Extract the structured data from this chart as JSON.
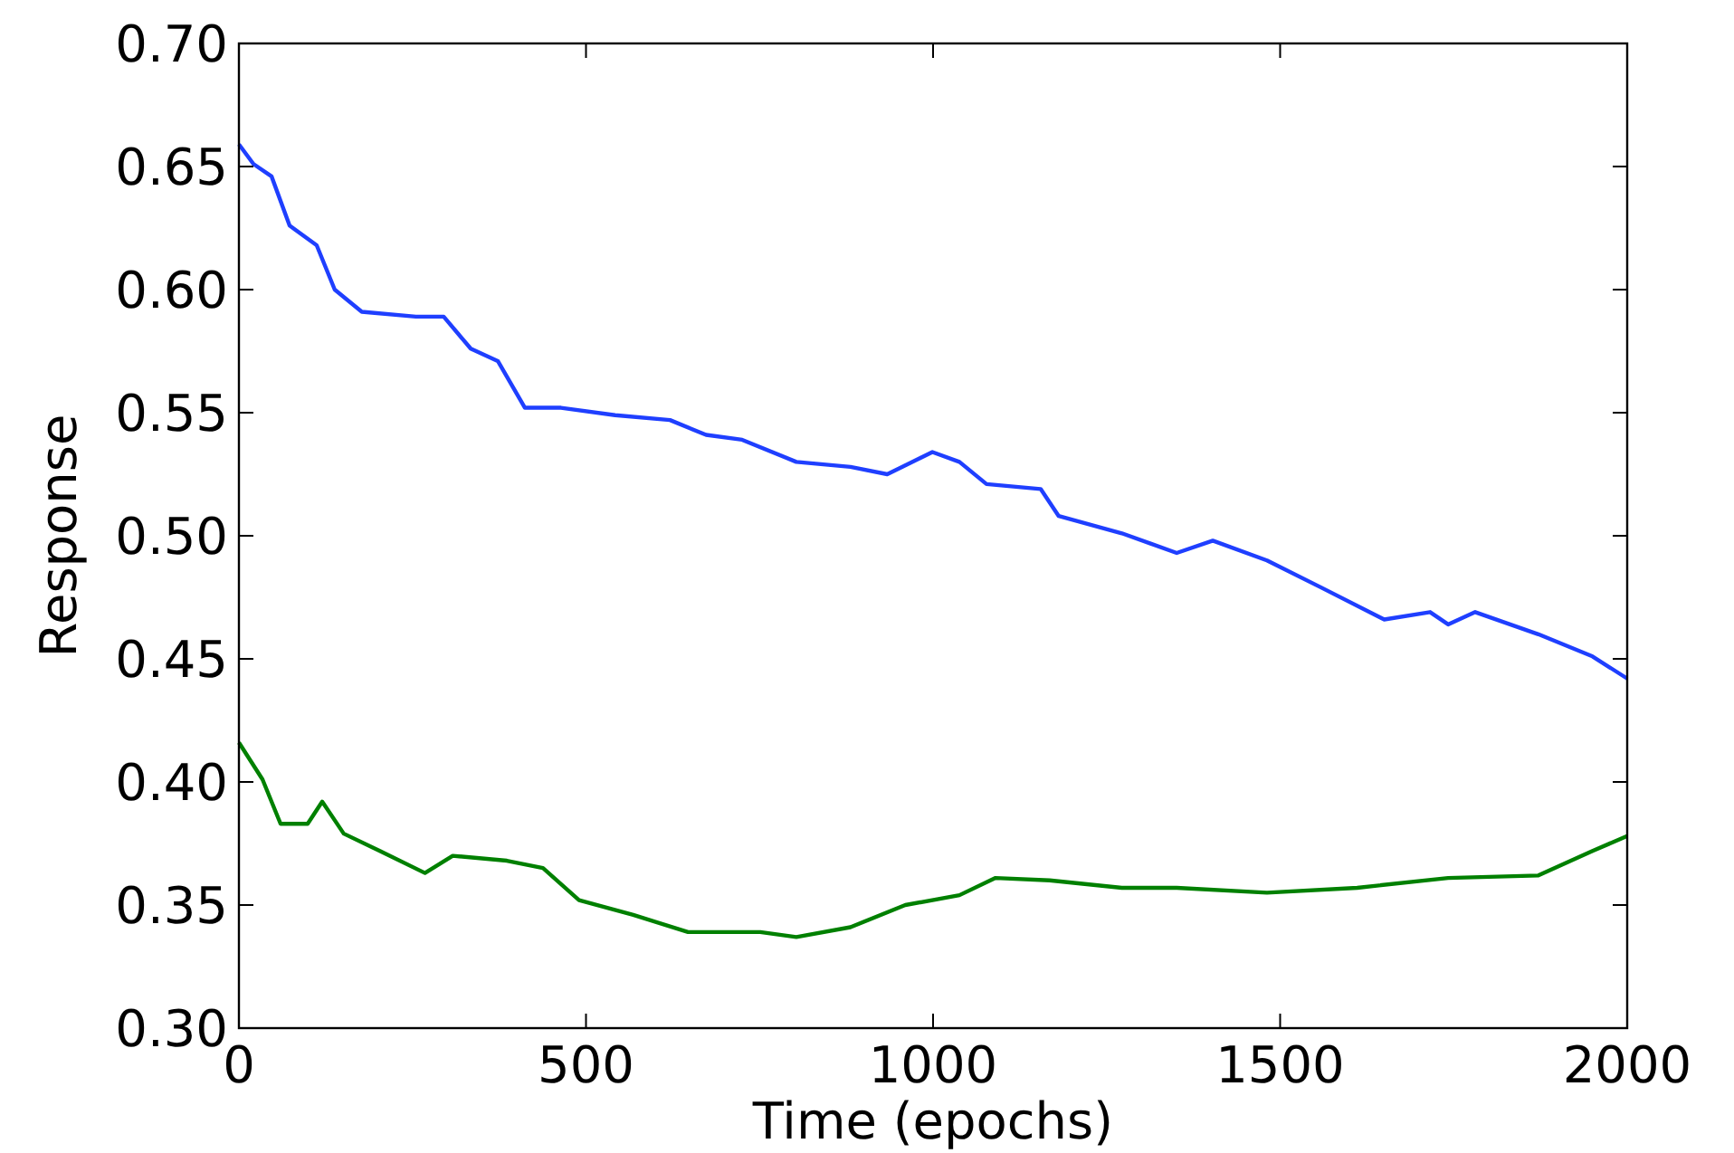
{
  "chart_data": {
    "type": "line",
    "xlabel": "Time (epochs)",
    "ylabel": "Response",
    "xlim": [
      0,
      2000
    ],
    "xticks": [
      0,
      500,
      1000,
      1500,
      2000
    ],
    "ylim": [
      0.3,
      0.7
    ],
    "yticks": [
      {
        "value": 0.3,
        "label": "0.30"
      },
      {
        "value": 0.35,
        "label": "0.35"
      },
      {
        "value": 0.4,
        "label": "0.40"
      },
      {
        "value": 0.45,
        "label": "0.45"
      },
      {
        "value": 0.5,
        "label": "0.50"
      },
      {
        "value": 0.55,
        "label": "0.55"
      },
      {
        "value": 0.6,
        "label": "0.60"
      },
      {
        "value": 0.65,
        "label": "0.65"
      },
      {
        "value": 0.7,
        "label": "0.70"
      }
    ],
    "grid": false,
    "marker": "none",
    "line_style": "solid",
    "series": [
      {
        "color": "#1f3fff",
        "x": [
          0,
          21,
          47,
          73,
          112,
          138,
          177,
          255,
          295,
          334,
          373,
          412,
          464,
          542,
          621,
          673,
          725,
          803,
          881,
          934,
          999,
          1038,
          1077,
          1155,
          1181,
          1272,
          1351,
          1403,
          1481,
          1559,
          1650,
          1716,
          1742,
          1781,
          1872,
          1950,
          2000
        ],
        "values": [
          0.659,
          0.651,
          0.646,
          0.626,
          0.618,
          0.6,
          0.591,
          0.589,
          0.589,
          0.576,
          0.571,
          0.552,
          0.552,
          0.549,
          0.547,
          0.541,
          0.539,
          0.53,
          0.528,
          0.525,
          0.534,
          0.53,
          0.521,
          0.519,
          0.508,
          0.501,
          0.493,
          0.498,
          0.49,
          0.479,
          0.466,
          0.469,
          0.464,
          0.469,
          0.46,
          0.451,
          0.442
        ]
      },
      {
        "color": "#008000",
        "x": [
          0,
          34,
          60,
          99,
          120,
          151,
          203,
          268,
          308,
          386,
          438,
          490,
          568,
          647,
          751,
          803,
          881,
          960,
          1038,
          1090,
          1168,
          1272,
          1351,
          1481,
          1611,
          1742,
          1872,
          1950,
          2000
        ],
        "values": [
          0.416,
          0.401,
          0.383,
          0.383,
          0.392,
          0.379,
          0.372,
          0.363,
          0.37,
          0.368,
          0.365,
          0.352,
          0.346,
          0.339,
          0.339,
          0.337,
          0.341,
          0.35,
          0.354,
          0.361,
          0.36,
          0.357,
          0.357,
          0.355,
          0.357,
          0.361,
          0.362,
          0.372,
          0.378
        ]
      }
    ]
  }
}
